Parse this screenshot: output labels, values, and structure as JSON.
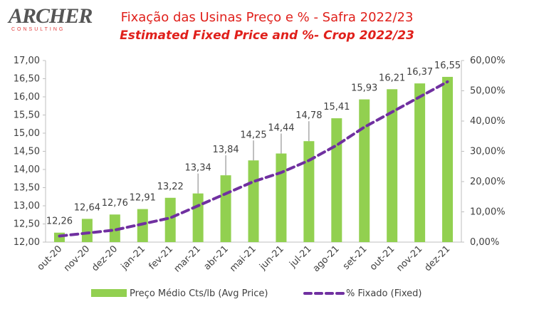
{
  "logo": {
    "text": "ARCHER",
    "subtext": "CONSULTING"
  },
  "chart_data": {
    "type": "bar",
    "title": "Fixação das Usinas Preço e % - Safra 2022/23",
    "subtitle": "Estimated Fixed Price and %- Crop 2022/23",
    "categories": [
      "out-20",
      "nov-20",
      "dez-20",
      "jan-21",
      "fev-21",
      "mar-21",
      "abr-21",
      "mai-21",
      "jun-21",
      "jul-21",
      "ago-21",
      "set-21",
      "out-21",
      "nov-21",
      "dez-21"
    ],
    "series": [
      {
        "name": "Preço Médio Cts/lb (Avg Price)",
        "type": "bar",
        "axis": "left",
        "color": "#92d050",
        "values": [
          12.26,
          12.64,
          12.76,
          12.91,
          13.22,
          13.34,
          13.84,
          14.25,
          14.44,
          14.78,
          15.41,
          15.93,
          16.21,
          16.37,
          16.55
        ],
        "labels": [
          "12,26",
          "12,64",
          "12,76",
          "12,91",
          "13,22",
          "13,34",
          "13,84",
          "14,25",
          "14,44",
          "14,78",
          "15,41",
          "15,93",
          "16,21",
          "16,37",
          "16,55"
        ]
      },
      {
        "name": "% Fixado (Fixed)",
        "type": "line",
        "axis": "right",
        "color": "#7030a0",
        "values": [
          2.0,
          3.0,
          4.0,
          6.0,
          8.0,
          12.0,
          16.0,
          20.0,
          23.0,
          27.0,
          32.0,
          38.0,
          43.0,
          48.0,
          53.0
        ]
      }
    ],
    "y_left": {
      "min": 12.0,
      "max": 17.0,
      "step": 0.5,
      "ticks": [
        "12,00",
        "12,50",
        "13,00",
        "13,50",
        "14,00",
        "14,50",
        "15,00",
        "15,50",
        "16,00",
        "16,50",
        "17,00"
      ]
    },
    "y_right": {
      "min": 0,
      "max": 60,
      "step": 10,
      "ticks": [
        "0,00%",
        "10,00%",
        "20,00%",
        "30,00%",
        "40,00%",
        "50,00%",
        "60,00%"
      ]
    },
    "grid": false,
    "legend_position": "bottom"
  }
}
